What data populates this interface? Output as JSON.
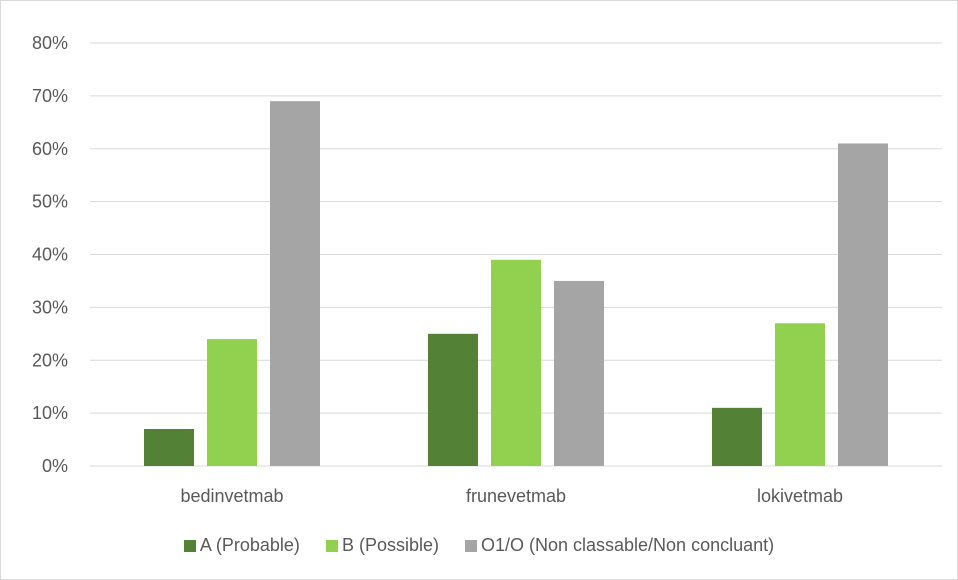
{
  "chart_data": {
    "type": "bar",
    "categories": [
      "bedinvetmab",
      "frunevetmab",
      "lokivetmab"
    ],
    "series": [
      {
        "name": "A (Probable)",
        "values": [
          7,
          25,
          11
        ],
        "color": "#538135"
      },
      {
        "name": "B (Possible)",
        "values": [
          24,
          39,
          27
        ],
        "color": "#92d050"
      },
      {
        "name": "O1/O (Non classable/Non concluant)",
        "values": [
          69,
          35,
          61
        ],
        "color": "#a5a5a5"
      }
    ],
    "ylim": [
      0,
      80
    ],
    "yticks": [
      0,
      10,
      20,
      30,
      40,
      50,
      60,
      70,
      80
    ],
    "ytick_labels": [
      "0%",
      "10%",
      "20%",
      "30%",
      "40%",
      "50%",
      "60%",
      "70%",
      "80%"
    ],
    "grid": true,
    "legend_position": "bottom",
    "title": "",
    "xlabel": "",
    "ylabel": ""
  }
}
